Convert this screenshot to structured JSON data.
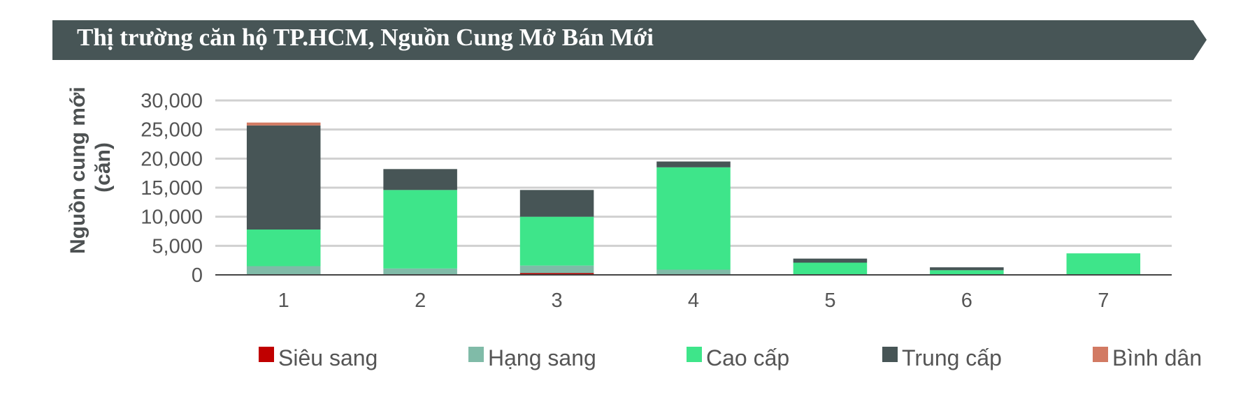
{
  "title": "Thị trường căn hộ TP.HCM, Nguồn Cung Mở Bán Mới",
  "colors": {
    "banner": "#475556",
    "Siêu sang": "#c00000",
    "Hạng sang": "#80bba8",
    "Cao cấp": "#3ee58a",
    "Trung cấp": "#475556",
    "Bình dân": "#d27a63",
    "grid": "#d0d0d0",
    "axis": "#444444"
  },
  "chart_data": {
    "type": "bar",
    "stacked": true,
    "categories": [
      "1",
      "2",
      "3",
      "4",
      "5",
      "6",
      "7"
    ],
    "ylabel_lines": [
      "Nguồn cung mới",
      "(căn)"
    ],
    "ylim": [
      0,
      30000
    ],
    "yticks": [
      "0",
      "5,000",
      "10,000",
      "15,000",
      "20,000",
      "25,000",
      "30,000"
    ],
    "grid": true,
    "legend_position": "bottom",
    "series": [
      {
        "name": "Siêu sang",
        "values": [
          0,
          0,
          300,
          0,
          0,
          0,
          0
        ]
      },
      {
        "name": "Hạng sang",
        "values": [
          1500,
          1100,
          1300,
          900,
          0,
          0,
          0
        ]
      },
      {
        "name": "Cao cấp",
        "values": [
          6300,
          13500,
          8400,
          17600,
          2100,
          800,
          3700
        ]
      },
      {
        "name": "Trung cấp",
        "values": [
          17900,
          3600,
          4600,
          1000,
          700,
          500,
          0
        ]
      },
      {
        "name": "Bình dân",
        "values": [
          500,
          0,
          0,
          0,
          0,
          0,
          0
        ]
      }
    ]
  }
}
